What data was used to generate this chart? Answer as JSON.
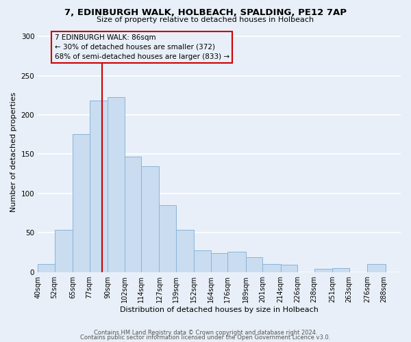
{
  "title": "7, EDINBURGH WALK, HOLBEACH, SPALDING, PE12 7AP",
  "subtitle": "Size of property relative to detached houses in Holbeach",
  "xlabel": "Distribution of detached houses by size in Holbeach",
  "ylabel": "Number of detached properties",
  "bar_left_edges": [
    40,
    52,
    65,
    77,
    90,
    102,
    114,
    127,
    139,
    152,
    164,
    176,
    189,
    201,
    214,
    226,
    238,
    251,
    263,
    276
  ],
  "bar_heights": [
    10,
    54,
    176,
    218,
    223,
    147,
    135,
    85,
    54,
    28,
    24,
    26,
    19,
    10,
    9,
    0,
    4,
    5,
    0,
    10
  ],
  "tick_labels": [
    "40sqm",
    "52sqm",
    "65sqm",
    "77sqm",
    "90sqm",
    "102sqm",
    "114sqm",
    "127sqm",
    "139sqm",
    "152sqm",
    "164sqm",
    "176sqm",
    "189sqm",
    "201sqm",
    "214sqm",
    "226sqm",
    "238sqm",
    "251sqm",
    "263sqm",
    "276sqm",
    "288sqm"
  ],
  "bar_color": "#c9dcf0",
  "bar_edge_color": "#8ab4d9",
  "vline_x": 86,
  "vline_color": "#cc0000",
  "annotation_text_line1": "7 EDINBURGH WALK: 86sqm",
  "annotation_text_line2": "← 30% of detached houses are smaller (372)",
  "annotation_text_line3": "68% of semi-detached houses are larger (833) →",
  "annotation_box_color": "#cc0000",
  "ylim": [
    0,
    305
  ],
  "xlim": [
    40,
    300
  ],
  "yticks": [
    0,
    50,
    100,
    150,
    200,
    250,
    300
  ],
  "footer_line1": "Contains HM Land Registry data © Crown copyright and database right 2024.",
  "footer_line2": "Contains public sector information licensed under the Open Government Licence v3.0.",
  "background_color": "#e8eff8",
  "plot_bg_color": "#e8eff8",
  "grid_color": "#ffffff",
  "title_fontsize": 9.5,
  "subtitle_fontsize": 8,
  "axis_label_fontsize": 8,
  "tick_fontsize": 7,
  "footer_fontsize": 6,
  "annotation_fontsize": 7.5
}
